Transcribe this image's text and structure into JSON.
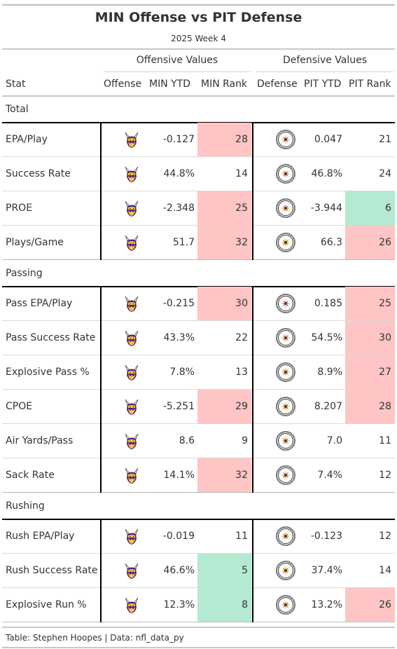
{
  "title": "MIN Offense vs PIT Defense",
  "subtitle": "2025 Week 4",
  "spanners": {
    "offensive": "Offensive Values",
    "defensive": "Defensive Values"
  },
  "columns": {
    "stat": "Stat",
    "offense": "Offense",
    "min_ytd": "MIN YTD",
    "min_rank": "MIN Rank",
    "defense": "Defense",
    "pit_ytd": "PIT YTD",
    "pit_rank": "PIT Rank"
  },
  "colors": {
    "bad": "#ffc5c5",
    "good": "#b3ead1"
  },
  "icons": {
    "offense": "vikings-logo",
    "defense": "steelers-logo"
  },
  "footer": "Table: Stephen Hoopes | Data: nfl_data_py",
  "chart_data": {
    "type": "table",
    "groups": [
      {
        "name": "Total",
        "rows": [
          {
            "stat": "EPA/Play",
            "min_ytd": "-0.127",
            "min_rank": "28",
            "min_hl": "bad",
            "pit_ytd": "0.047",
            "pit_rank": "21",
            "pit_hl": ""
          },
          {
            "stat": "Success Rate",
            "min_ytd": "44.8%",
            "min_rank": "14",
            "min_hl": "",
            "pit_ytd": "46.8%",
            "pit_rank": "24",
            "pit_hl": ""
          },
          {
            "stat": "PROE",
            "min_ytd": "-2.348",
            "min_rank": "25",
            "min_hl": "bad",
            "pit_ytd": "-3.944",
            "pit_rank": "6",
            "pit_hl": "good"
          },
          {
            "stat": "Plays/Game",
            "min_ytd": "51.7",
            "min_rank": "32",
            "min_hl": "bad",
            "pit_ytd": "66.3",
            "pit_rank": "26",
            "pit_hl": "bad"
          }
        ]
      },
      {
        "name": "Passing",
        "rows": [
          {
            "stat": "Pass EPA/Play",
            "min_ytd": "-0.215",
            "min_rank": "30",
            "min_hl": "bad",
            "pit_ytd": "0.185",
            "pit_rank": "25",
            "pit_hl": "bad"
          },
          {
            "stat": "Pass Success Rate",
            "min_ytd": "43.3%",
            "min_rank": "22",
            "min_hl": "",
            "pit_ytd": "54.5%",
            "pit_rank": "30",
            "pit_hl": "bad"
          },
          {
            "stat": "Explosive Pass %",
            "min_ytd": "7.8%",
            "min_rank": "13",
            "min_hl": "",
            "pit_ytd": "8.9%",
            "pit_rank": "27",
            "pit_hl": "bad"
          },
          {
            "stat": "CPOE",
            "min_ytd": "-5.251",
            "min_rank": "29",
            "min_hl": "bad",
            "pit_ytd": "8.207",
            "pit_rank": "28",
            "pit_hl": "bad"
          },
          {
            "stat": "Air Yards/Pass",
            "min_ytd": "8.6",
            "min_rank": "9",
            "min_hl": "",
            "pit_ytd": "7.0",
            "pit_rank": "11",
            "pit_hl": ""
          },
          {
            "stat": "Sack Rate",
            "min_ytd": "14.1%",
            "min_rank": "32",
            "min_hl": "bad",
            "pit_ytd": "7.4%",
            "pit_rank": "12",
            "pit_hl": ""
          }
        ]
      },
      {
        "name": "Rushing",
        "rows": [
          {
            "stat": "Rush EPA/Play",
            "min_ytd": "-0.019",
            "min_rank": "11",
            "min_hl": "",
            "pit_ytd": "-0.123",
            "pit_rank": "12",
            "pit_hl": ""
          },
          {
            "stat": "Rush Success Rate",
            "min_ytd": "46.6%",
            "min_rank": "5",
            "min_hl": "good",
            "pit_ytd": "37.4%",
            "pit_rank": "14",
            "pit_hl": ""
          },
          {
            "stat": "Explosive Run %",
            "min_ytd": "12.3%",
            "min_rank": "8",
            "min_hl": "good",
            "pit_ytd": "13.2%",
            "pit_rank": "26",
            "pit_hl": "bad"
          }
        ]
      }
    ]
  }
}
